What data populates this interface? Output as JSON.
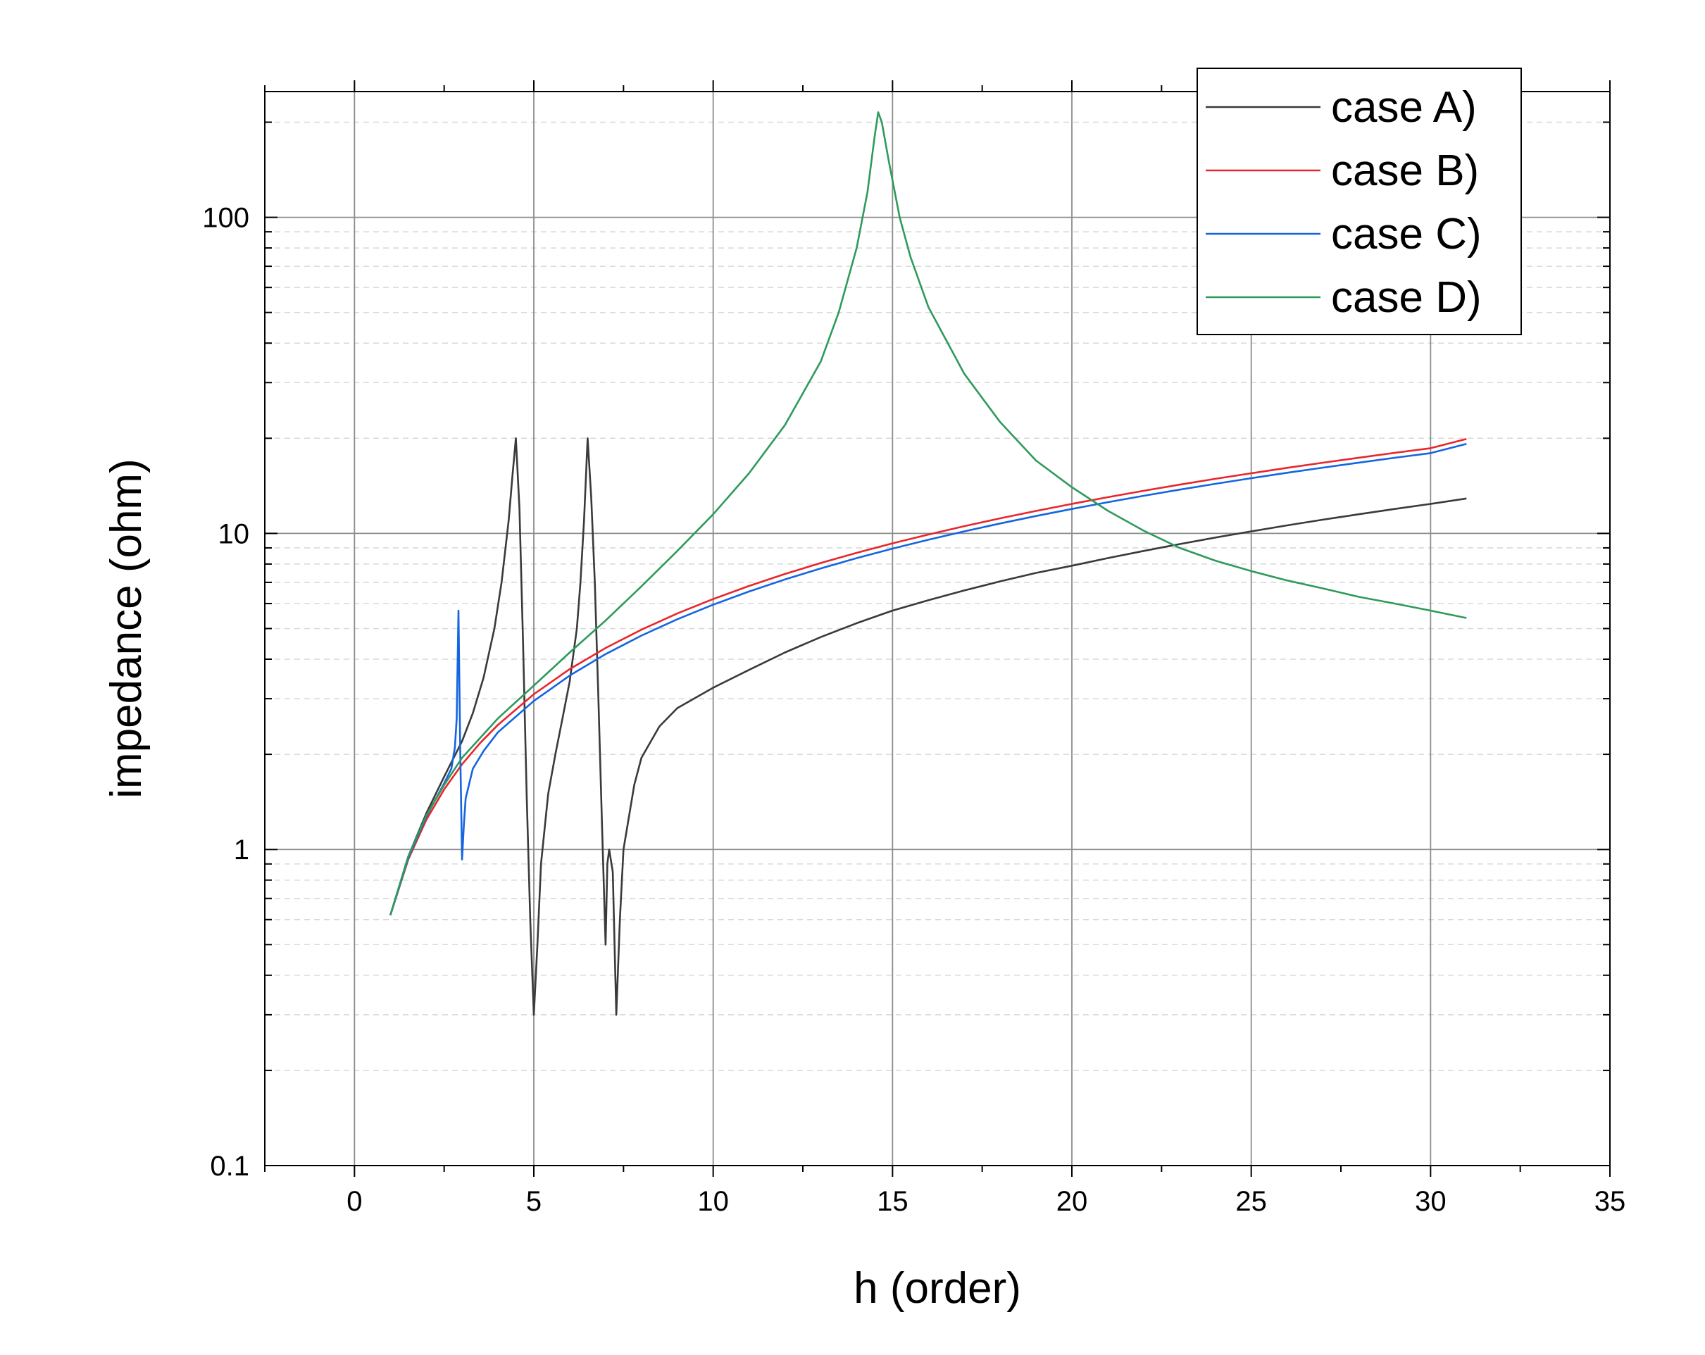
{
  "chart_data": {
    "type": "line",
    "xlabel": "h (order)",
    "ylabel": "impedance (ohm)",
    "xlim": [
      -2.5,
      35
    ],
    "ylim": [
      0.1,
      250
    ],
    "yscale": "log",
    "xticks": [
      "0",
      "5",
      "10",
      "15",
      "20",
      "25",
      "30",
      "35"
    ],
    "yticks": [
      "0.1",
      "1",
      "10",
      "100"
    ],
    "grid": true,
    "legend_position": "top-right",
    "series": [
      {
        "name": "case A)",
        "color": "#3a3a3a",
        "points": [
          [
            1.0,
            0.62
          ],
          [
            1.5,
            0.95
          ],
          [
            2.0,
            1.3
          ],
          [
            2.5,
            1.7
          ],
          [
            3.0,
            2.2
          ],
          [
            3.3,
            2.7
          ],
          [
            3.6,
            3.5
          ],
          [
            3.9,
            5.0
          ],
          [
            4.1,
            7.0
          ],
          [
            4.3,
            11.0
          ],
          [
            4.4,
            15.0
          ],
          [
            4.5,
            20.0
          ],
          [
            4.6,
            12.0
          ],
          [
            4.7,
            4.5
          ],
          [
            4.8,
            1.5
          ],
          [
            4.9,
            0.6
          ],
          [
            5.0,
            0.3
          ],
          [
            5.1,
            0.5
          ],
          [
            5.2,
            0.9
          ],
          [
            5.4,
            1.5
          ],
          [
            5.6,
            2.0
          ],
          [
            5.8,
            2.6
          ],
          [
            6.0,
            3.4
          ],
          [
            6.2,
            5.0
          ],
          [
            6.3,
            7.0
          ],
          [
            6.4,
            11.0
          ],
          [
            6.5,
            20.0
          ],
          [
            6.6,
            13.0
          ],
          [
            6.7,
            7.0
          ],
          [
            6.8,
            3.0
          ],
          [
            6.9,
            1.2
          ],
          [
            7.0,
            0.5
          ],
          [
            7.05,
            0.9
          ],
          [
            7.1,
            1.0
          ],
          [
            7.2,
            0.85
          ],
          [
            7.3,
            0.3
          ],
          [
            7.4,
            0.6
          ],
          [
            7.5,
            1.0
          ],
          [
            7.8,
            1.6
          ],
          [
            8.0,
            1.95
          ],
          [
            8.5,
            2.45
          ],
          [
            9.0,
            2.8
          ],
          [
            10.0,
            3.25
          ],
          [
            11.0,
            3.7
          ],
          [
            12.0,
            4.2
          ],
          [
            13.0,
            4.7
          ],
          [
            14.0,
            5.2
          ],
          [
            15.0,
            5.7
          ],
          [
            16.0,
            6.15
          ],
          [
            17.0,
            6.6
          ],
          [
            18.0,
            7.05
          ],
          [
            19.0,
            7.5
          ],
          [
            20.0,
            7.9
          ],
          [
            21.0,
            8.35
          ],
          [
            22.0,
            8.8
          ],
          [
            23.0,
            9.25
          ],
          [
            24.0,
            9.7
          ],
          [
            25.0,
            10.15
          ],
          [
            26.0,
            10.6
          ],
          [
            27.0,
            11.05
          ],
          [
            28.0,
            11.5
          ],
          [
            29.0,
            11.95
          ],
          [
            30.0,
            12.4
          ],
          [
            31.0,
            12.9
          ]
        ]
      },
      {
        "name": "case B)",
        "color": "#e8262c",
        "points": [
          [
            1.0,
            0.62
          ],
          [
            1.5,
            0.93
          ],
          [
            2.0,
            1.24
          ],
          [
            2.5,
            1.55
          ],
          [
            3.0,
            1.86
          ],
          [
            3.5,
            2.17
          ],
          [
            4.0,
            2.48
          ],
          [
            5.0,
            3.1
          ],
          [
            6.0,
            3.72
          ],
          [
            7.0,
            4.34
          ],
          [
            8.0,
            4.96
          ],
          [
            9.0,
            5.58
          ],
          [
            10.0,
            6.2
          ],
          [
            11.0,
            6.82
          ],
          [
            12.0,
            7.44
          ],
          [
            13.0,
            8.06
          ],
          [
            14.0,
            8.68
          ],
          [
            15.0,
            9.3
          ],
          [
            16.0,
            9.92
          ],
          [
            17.0,
            10.54
          ],
          [
            18.0,
            11.16
          ],
          [
            19.0,
            11.78
          ],
          [
            20.0,
            12.4
          ],
          [
            21.0,
            13.02
          ],
          [
            22.0,
            13.64
          ],
          [
            23.0,
            14.26
          ],
          [
            24.0,
            14.88
          ],
          [
            25.0,
            15.5
          ],
          [
            26.0,
            16.12
          ],
          [
            27.0,
            16.74
          ],
          [
            28.0,
            17.36
          ],
          [
            29.0,
            17.98
          ],
          [
            30.0,
            18.6
          ],
          [
            31.0,
            19.9
          ]
        ]
      },
      {
        "name": "case C)",
        "color": "#1565e0",
        "points": [
          [
            1.0,
            0.62
          ],
          [
            1.5,
            0.94
          ],
          [
            2.0,
            1.27
          ],
          [
            2.5,
            1.62
          ],
          [
            2.7,
            1.8
          ],
          [
            2.8,
            2.1
          ],
          [
            2.85,
            2.6
          ],
          [
            2.9,
            5.7
          ],
          [
            2.95,
            2.0
          ],
          [
            3.0,
            0.93
          ],
          [
            3.05,
            1.2
          ],
          [
            3.1,
            1.45
          ],
          [
            3.3,
            1.8
          ],
          [
            3.6,
            2.05
          ],
          [
            4.0,
            2.35
          ],
          [
            5.0,
            2.95
          ],
          [
            6.0,
            3.55
          ],
          [
            7.0,
            4.15
          ],
          [
            8.0,
            4.75
          ],
          [
            9.0,
            5.35
          ],
          [
            10.0,
            5.95
          ],
          [
            11.0,
            6.55
          ],
          [
            12.0,
            7.15
          ],
          [
            13.0,
            7.75
          ],
          [
            14.0,
            8.35
          ],
          [
            15.0,
            8.95
          ],
          [
            16.0,
            9.55
          ],
          [
            17.0,
            10.15
          ],
          [
            18.0,
            10.75
          ],
          [
            19.0,
            11.35
          ],
          [
            20.0,
            11.95
          ],
          [
            21.0,
            12.55
          ],
          [
            22.0,
            13.15
          ],
          [
            23.0,
            13.75
          ],
          [
            24.0,
            14.35
          ],
          [
            25.0,
            14.95
          ],
          [
            26.0,
            15.55
          ],
          [
            27.0,
            16.15
          ],
          [
            28.0,
            16.75
          ],
          [
            29.0,
            17.35
          ],
          [
            30.0,
            17.95
          ],
          [
            31.0,
            19.2
          ]
        ]
      },
      {
        "name": "case D)",
        "color": "#2e9a5c",
        "points": [
          [
            1.0,
            0.62
          ],
          [
            1.5,
            0.95
          ],
          [
            2.0,
            1.28
          ],
          [
            2.5,
            1.6
          ],
          [
            3.0,
            1.95
          ],
          [
            4.0,
            2.6
          ],
          [
            5.0,
            3.3
          ],
          [
            6.0,
            4.2
          ],
          [
            7.0,
            5.3
          ],
          [
            8.0,
            6.8
          ],
          [
            9.0,
            8.8
          ],
          [
            10.0,
            11.5
          ],
          [
            11.0,
            15.5
          ],
          [
            12.0,
            22.0
          ],
          [
            13.0,
            35.0
          ],
          [
            13.5,
            50.0
          ],
          [
            14.0,
            80.0
          ],
          [
            14.3,
            120.0
          ],
          [
            14.5,
            180.0
          ],
          [
            14.6,
            215.0
          ],
          [
            14.7,
            200.0
          ],
          [
            14.9,
            150.0
          ],
          [
            15.2,
            100.0
          ],
          [
            15.5,
            75.0
          ],
          [
            16.0,
            52.0
          ],
          [
            17.0,
            32.0
          ],
          [
            18.0,
            22.5
          ],
          [
            19.0,
            17.0
          ],
          [
            20.0,
            14.0
          ],
          [
            21.0,
            11.8
          ],
          [
            22.0,
            10.2
          ],
          [
            23.0,
            9.0
          ],
          [
            24.0,
            8.2
          ],
          [
            25.0,
            7.6
          ],
          [
            26.0,
            7.1
          ],
          [
            27.0,
            6.7
          ],
          [
            28.0,
            6.3
          ],
          [
            29.0,
            6.0
          ],
          [
            30.0,
            5.7
          ],
          [
            31.0,
            5.4
          ]
        ]
      }
    ]
  }
}
